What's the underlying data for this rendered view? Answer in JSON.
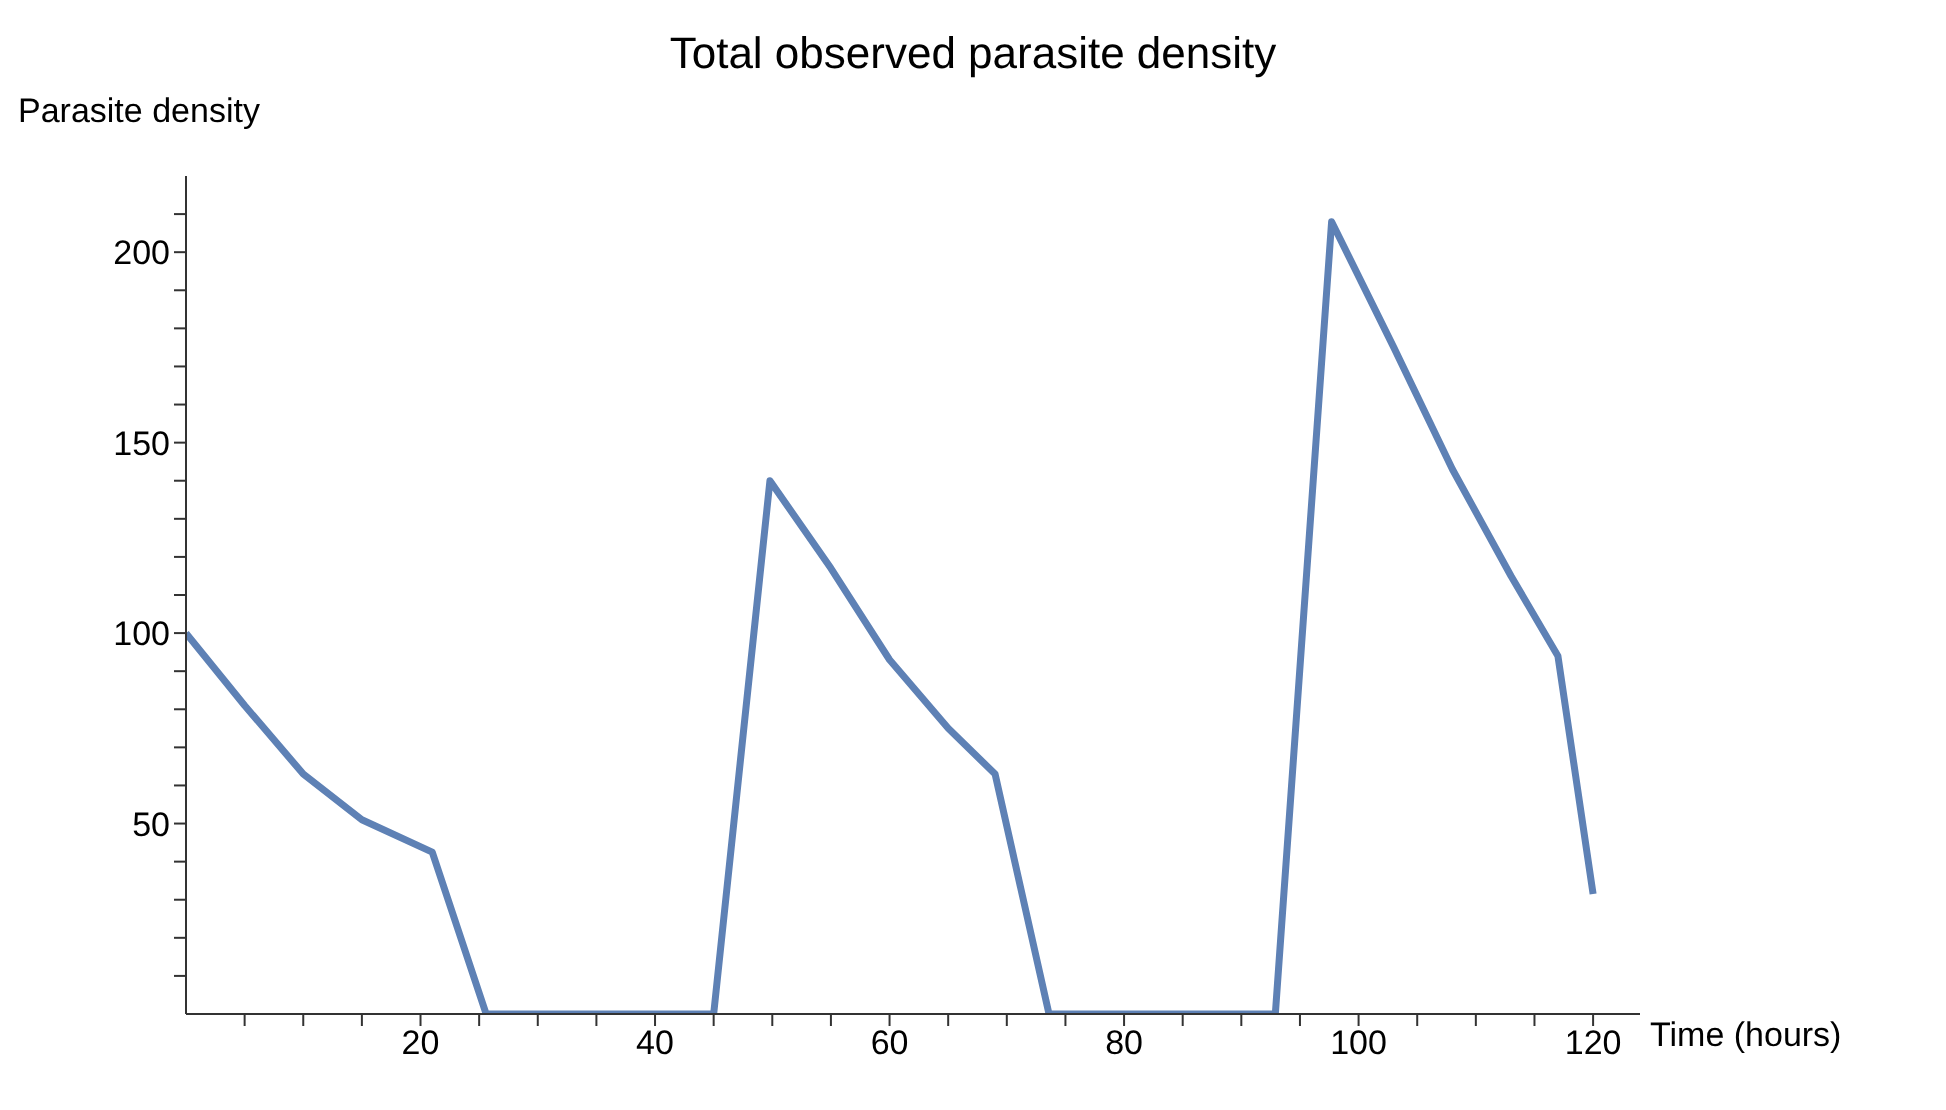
{
  "chart_data": {
    "type": "line",
    "title": "Total observed parasite density",
    "xlabel": "Time (hours)",
    "ylabel": "Parasite density",
    "x": [
      0,
      5,
      10,
      15,
      21,
      25.6,
      45,
      49.8,
      55,
      60,
      65,
      69,
      73.6,
      92.9,
      97.7,
      103,
      108,
      113,
      117,
      120
    ],
    "series": [
      {
        "color": "#5e81b5",
        "values": [
          100,
          81,
          63,
          51,
          42.5,
          0,
          0,
          140,
          117,
          93,
          75,
          63,
          0,
          0,
          208,
          175,
          143,
          115,
          94,
          31.5
        ]
      }
    ],
    "xlim": [
      0,
      124
    ],
    "ylim": [
      0,
      220
    ],
    "xticks": [
      {
        "value": 5,
        "label": null
      },
      {
        "value": 10,
        "label": null
      },
      {
        "value": 15,
        "label": null
      },
      20,
      {
        "value": 25,
        "label": null
      },
      {
        "value": 30,
        "label": null
      },
      {
        "value": 35,
        "label": null
      },
      40,
      {
        "value": 45,
        "label": null
      },
      {
        "value": 50,
        "label": null
      },
      {
        "value": 55,
        "label": null
      },
      60,
      {
        "value": 65,
        "label": null
      },
      {
        "value": 70,
        "label": null
      },
      {
        "value": 75,
        "label": null
      },
      80,
      {
        "value": 85,
        "label": null
      },
      {
        "value": 90,
        "label": null
      },
      {
        "value": 95,
        "label": null
      },
      100,
      {
        "value": 105,
        "label": null
      },
      {
        "value": 110,
        "label": null
      },
      {
        "value": 115,
        "label": null
      },
      120
    ],
    "yticks": [
      {
        "value": 10,
        "label": null
      },
      {
        "value": 20,
        "label": null
      },
      {
        "value": 30,
        "label": null
      },
      {
        "value": 40,
        "label": null
      },
      50,
      {
        "value": 60,
        "label": null
      },
      {
        "value": 70,
        "label": null
      },
      {
        "value": 80,
        "label": null
      },
      {
        "value": 90,
        "label": null
      },
      100,
      {
        "value": 110,
        "label": null
      },
      {
        "value": 120,
        "label": null
      },
      {
        "value": 130,
        "label": null
      },
      {
        "value": 140,
        "label": null
      },
      150,
      {
        "value": 160,
        "label": null
      },
      {
        "value": 170,
        "label": null
      },
      {
        "value": 180,
        "label": null
      },
      {
        "value": 190,
        "label": null
      },
      200,
      {
        "value": 210,
        "label": null
      }
    ],
    "grid": false,
    "legend": false,
    "marker": "none",
    "line_style": "solid"
  }
}
